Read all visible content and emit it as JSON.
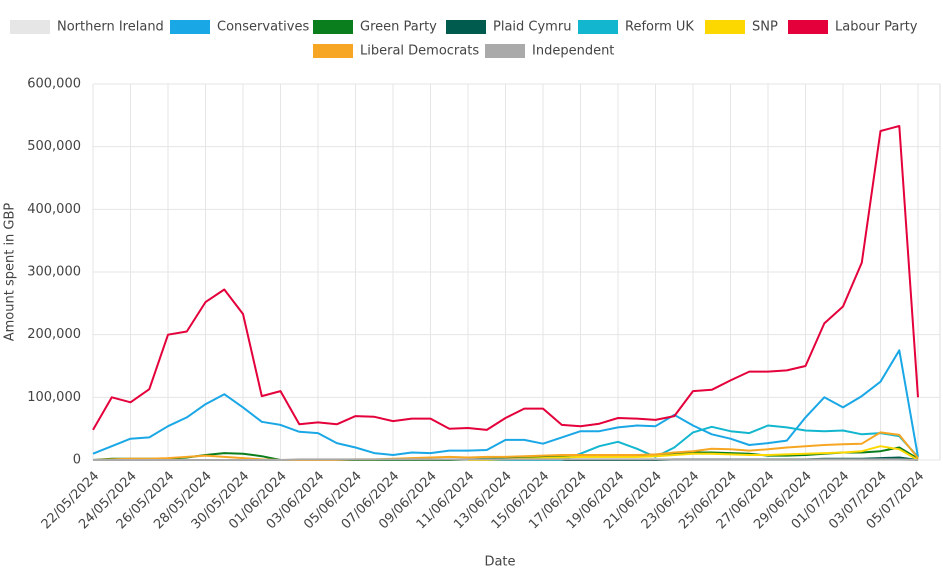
{
  "chart_data": {
    "type": "line",
    "x_label": "Date",
    "y_label": "Amount spent in GBP",
    "categories": [
      "22/05/2024",
      null,
      "24/05/2024",
      null,
      "26/05/2024",
      null,
      "28/05/2024",
      null,
      "30/05/2024",
      null,
      "01/06/2024",
      null,
      "03/06/2024",
      null,
      "05/06/2024",
      null,
      "07/06/2024",
      null,
      "09/06/2024",
      null,
      "11/06/2024",
      null,
      "13/06/2024",
      null,
      "15/06/2024",
      null,
      "17/06/2024",
      null,
      "19/06/2024",
      null,
      "21/06/2024",
      null,
      "23/06/2024",
      null,
      "25/06/2024",
      null,
      "27/06/2024",
      null,
      "29/06/2024",
      null,
      "01/07/2024",
      null,
      "03/07/2024",
      null,
      "05/07/2024"
    ],
    "ylim": [
      0,
      600000
    ],
    "yticks": [
      0,
      {
        "value": 100000,
        "label": "100,000"
      },
      {
        "value": 200000,
        "label": "200,000"
      },
      {
        "value": 300000,
        "label": "300,000"
      },
      {
        "value": 400000,
        "label": "400,000"
      },
      {
        "value": 500000,
        "label": "500,000"
      },
      {
        "value": 600000,
        "label": "600,000"
      }
    ],
    "grid": true,
    "series": [
      {
        "name": "Northern Ireland",
        "color": "#e6e6e6",
        "values": [
          0,
          0,
          0,
          0,
          0,
          0,
          0,
          0,
          0,
          0,
          0,
          0,
          0,
          0,
          0,
          0,
          0,
          0,
          0,
          0,
          0,
          0,
          0,
          0,
          0,
          0,
          0,
          0,
          0,
          0,
          0,
          0,
          0,
          0,
          0,
          0,
          0,
          0,
          0,
          0,
          0,
          0,
          0,
          0,
          0
        ]
      },
      {
        "name": "Conservatives",
        "color": "#1aa7e6",
        "values": [
          10000,
          22000,
          34000,
          36000,
          54000,
          68000,
          89000,
          105000,
          84000,
          61000,
          56000,
          45000,
          43000,
          27000,
          20000,
          11000,
          8000,
          12000,
          11000,
          15000,
          15000,
          16000,
          32000,
          32000,
          26000,
          36000,
          46000,
          46000,
          52000,
          55000,
          54000,
          72000,
          55000,
          41000,
          34000,
          24000,
          27000,
          31000,
          68000,
          100000,
          84000,
          102000,
          125000,
          175000,
          5000
        ]
      },
      {
        "name": "Green Party",
        "color": "#0a7d1c",
        "values": [
          0,
          2000,
          2000,
          2000,
          2000,
          4000,
          8000,
          11000,
          10000,
          6000,
          0,
          0,
          0,
          0,
          0,
          0,
          0,
          0,
          0,
          0,
          1000,
          2000,
          3000,
          4000,
          5000,
          5000,
          6000,
          6000,
          6000,
          6000,
          8000,
          10000,
          12000,
          12000,
          11000,
          10000,
          7000,
          7000,
          8000,
          10000,
          12000,
          12000,
          14000,
          20000,
          2000
        ]
      },
      {
        "name": "Plaid Cymru",
        "color": "#005b4f",
        "values": [
          null,
          null,
          null,
          null,
          null,
          null,
          null,
          null,
          null,
          null,
          null,
          null,
          null,
          null,
          null,
          null,
          null,
          null,
          null,
          null,
          0,
          0,
          0,
          0,
          0,
          0,
          0,
          0,
          0,
          0,
          0,
          1000,
          1000,
          1000,
          1000,
          1000,
          1000,
          1000,
          1000,
          2000,
          2000,
          2000,
          3000,
          4000,
          0
        ]
      },
      {
        "name": "Reform UK",
        "color": "#12b6cf",
        "values": [
          null,
          null,
          null,
          null,
          null,
          null,
          null,
          null,
          null,
          null,
          null,
          null,
          null,
          null,
          null,
          null,
          null,
          null,
          null,
          null,
          0,
          0,
          0,
          0,
          0,
          0,
          10000,
          22000,
          29000,
          18000,
          5000,
          20000,
          44000,
          53000,
          46000,
          43000,
          55000,
          52000,
          47000,
          46000,
          47000,
          41000,
          43000,
          38000,
          5000
        ]
      },
      {
        "name": "SNP",
        "color": "#fdd800",
        "values": [
          null,
          null,
          null,
          null,
          null,
          null,
          null,
          null,
          null,
          null,
          null,
          null,
          null,
          null,
          null,
          null,
          null,
          null,
          null,
          null,
          0,
          0,
          1000,
          2000,
          3000,
          4000,
          5000,
          5000,
          5000,
          5000,
          6000,
          8000,
          10000,
          10000,
          9000,
          8000,
          8000,
          9000,
          10000,
          11000,
          12000,
          14000,
          22000,
          17000,
          0
        ]
      },
      {
        "name": "Labour Party",
        "color": "#e4003b",
        "values": [
          48000,
          100000,
          92000,
          113000,
          200000,
          205000,
          252000,
          272000,
          233000,
          102000,
          110000,
          57000,
          60000,
          57000,
          70000,
          69000,
          62000,
          66000,
          66000,
          50000,
          51000,
          48000,
          67000,
          82000,
          82000,
          56000,
          54000,
          58000,
          67000,
          66000,
          64000,
          70000,
          110000,
          112000,
          127000,
          141000,
          141000,
          143000,
          150000,
          218000,
          245000,
          315000,
          525000,
          533000,
          100000
        ]
      },
      {
        "name": "Liberal Democrats",
        "color": "#f6a623",
        "values": [
          0,
          1000,
          2000,
          2000,
          3000,
          5000,
          7000,
          5000,
          3000,
          1000,
          0,
          0,
          0,
          0,
          1000,
          1000,
          2000,
          3000,
          4000,
          5000,
          4000,
          5000,
          5000,
          6000,
          7000,
          8000,
          8000,
          8000,
          8000,
          8000,
          9000,
          12000,
          14000,
          18000,
          17000,
          15000,
          17000,
          20000,
          22000,
          24000,
          25000,
          26000,
          44000,
          40000,
          3000
        ]
      },
      {
        "name": "Independent",
        "color": "#aaaaaa",
        "values": [
          0,
          0,
          0,
          0,
          0,
          0,
          0,
          0,
          0,
          0,
          0,
          1000,
          1000,
          1000,
          1000,
          1000,
          1000,
          1000,
          1000,
          1000,
          1000,
          1000,
          1000,
          1000,
          1000,
          1000,
          1000,
          1000,
          1000,
          1000,
          1000,
          1000,
          1000,
          1000,
          1000,
          1000,
          1000,
          1000,
          1000,
          1000,
          1000,
          1000,
          1000,
          1000,
          0
        ]
      }
    ]
  }
}
